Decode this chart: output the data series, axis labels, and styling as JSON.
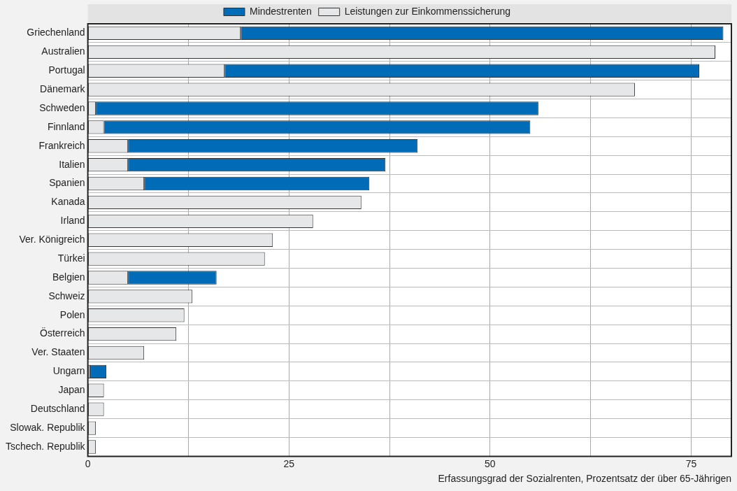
{
  "chart_data": {
    "type": "bar",
    "orientation": "horizontal",
    "stacked": true,
    "xlabel": "Erfassungsgrad der Sozialrenten, Prozentsatz der über 65-Jährigen",
    "categories": [
      "Griechenland",
      "Australien",
      "Portugal",
      "Dänemark",
      "Schweden",
      "Finnland",
      "Frankreich",
      "Italien",
      "Spanien",
      "Kanada",
      "Irland",
      "Ver. Königreich",
      "Türkei",
      "Belgien",
      "Schweiz",
      "Polen",
      "Österreich",
      "Ver. Staaten",
      "Ungarn",
      "Japan",
      "Deutschland",
      "Slowak. Republik",
      "Tschech. Republik"
    ],
    "series": [
      {
        "name": "Leistungen zur Einkommenssicherung",
        "color": "#e6e7e8",
        "values": [
          19,
          78,
          17,
          68,
          1,
          2,
          5,
          5,
          7,
          34,
          28,
          23,
          22,
          5,
          13,
          12,
          11,
          7,
          0.3,
          2,
          2,
          1,
          1
        ]
      },
      {
        "name": "Mindestrenten",
        "color": "#006bb6",
        "values": [
          60,
          null,
          59,
          null,
          55,
          53,
          36,
          32,
          28,
          null,
          null,
          null,
          null,
          11,
          null,
          null,
          null,
          null,
          2,
          null,
          null,
          null,
          null
        ]
      }
    ],
    "xlim": [
      0,
      80
    ],
    "xticks": [
      0,
      {
        "value": 12.5,
        "label": null
      },
      25,
      {
        "value": 37.5,
        "label": null
      },
      50,
      {
        "value": 62.5,
        "label": null
      },
      75
    ],
    "grid": true,
    "legend": "top"
  }
}
